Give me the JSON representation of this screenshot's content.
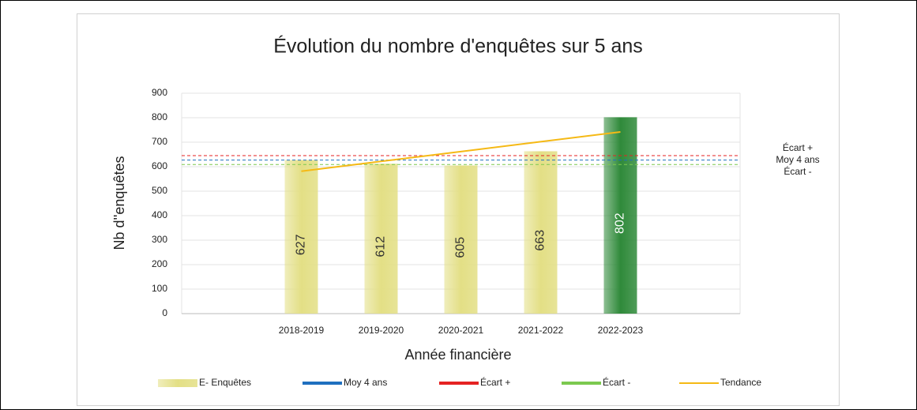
{
  "chart_data": {
    "type": "bar",
    "title": "Évolution du nombre d'enquêtes sur 5 ans",
    "x_label": "Année financière",
    "y_label": "Nb d''enquêtes",
    "categories": [
      null,
      "2018-2019",
      "2019-2020",
      "2020-2021",
      "2021-2022",
      "2022-2023",
      null
    ],
    "ylim": [
      0,
      900
    ],
    "yticks": [
      0,
      100,
      200,
      300,
      400,
      500,
      600,
      700,
      800,
      900
    ],
    "grid": true,
    "series": [
      {
        "name": "E- Enquêtes",
        "type": "bar",
        "color": "#e3df85",
        "colors": [
          "#e3df85",
          "#e3df85",
          "#e3df85",
          "#e3df85",
          "#e3df85",
          "#2f8a3a",
          "#e3df85"
        ],
        "values": [
          null,
          627,
          612,
          605,
          663,
          802,
          null
        ]
      },
      {
        "name": "Moy 4 ans",
        "type": "hline",
        "color": "#1f6fbf",
        "value": 627
      },
      {
        "name": "Écart +",
        "type": "hline",
        "color": "#e52222",
        "value": 645
      },
      {
        "name": "Écart -",
        "type": "hline",
        "color": "#7cc94f",
        "value": 609
      },
      {
        "name": "Tendance",
        "type": "line",
        "color": "#f5b915",
        "values": [
          null,
          581.6,
          621.7,
          661.8,
          701.9,
          742,
          null
        ]
      }
    ],
    "annotations": [
      "Écart +",
      "Moy 4 ans",
      "Écart -"
    ]
  }
}
